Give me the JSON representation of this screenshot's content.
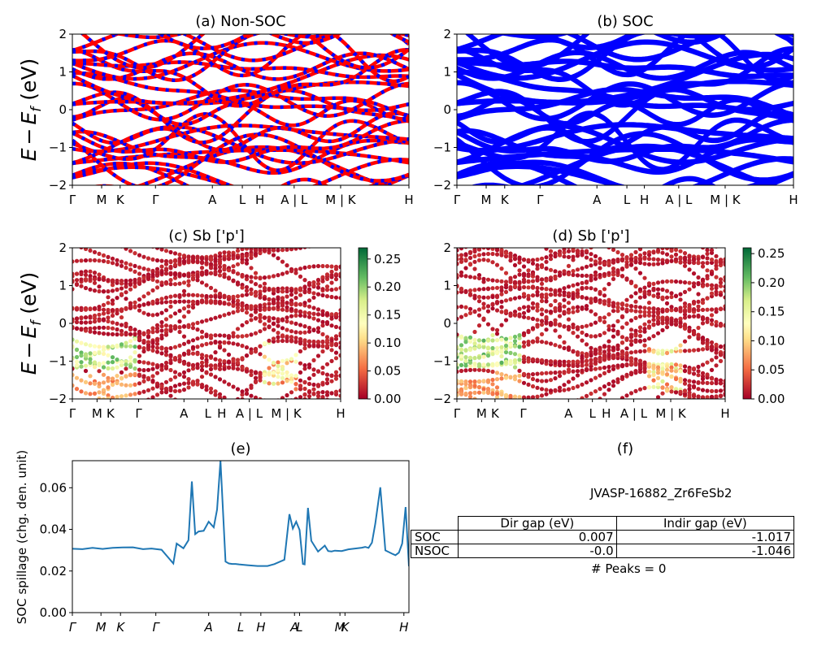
{
  "chart_data": [
    {
      "id": "a",
      "type": "line",
      "title": "(a) Non-SOC",
      "ylabel": "$E - E_f$ (eV)",
      "ylabel_text": {
        "E": "E",
        "minus": "−",
        "E2": "E",
        "sub": "f",
        "unit": " (eV)"
      },
      "ylim": [
        -2,
        2
      ],
      "yticks": [
        "−2",
        "−1",
        "0",
        "1",
        "2"
      ],
      "xticks": [
        "Γ",
        "M",
        "K",
        "Γ",
        "A",
        "L",
        "H",
        "A | L",
        "M | K",
        "H"
      ],
      "line_colors": [
        "#ff0000",
        "#0000ff"
      ]
    },
    {
      "id": "b",
      "type": "line",
      "title": "(b) SOC",
      "ylim": [
        -2,
        2
      ],
      "yticks": [
        "−2",
        "−1",
        "0",
        "1",
        "2"
      ],
      "xticks": [
        "Γ",
        "M",
        "K",
        "Γ",
        "A",
        "L",
        "H",
        "A | L",
        "M | K",
        "H"
      ],
      "line_colors": [
        "#0000ff"
      ]
    },
    {
      "id": "c",
      "type": "scatter",
      "title": "(c)  Sb ['p']",
      "ylabel": "$E - E_f$ (eV)",
      "ylim": [
        -2,
        2
      ],
      "yticks": [
        "−2",
        "−1",
        "0",
        "1",
        "2"
      ],
      "xticks": [
        "Γ",
        "M",
        "K",
        "Γ",
        "A",
        "L",
        "H",
        "A | L",
        "M | K",
        "H"
      ],
      "colorbar": {
        "min": 0.0,
        "max": 0.27,
        "ticks": [
          "0.00",
          "0.05",
          "0.10",
          "0.15",
          "0.20",
          "0.25"
        ],
        "tick_values": [
          0,
          0.05,
          0.1,
          0.15,
          0.2,
          0.25
        ],
        "colormap": "RdYlGn"
      }
    },
    {
      "id": "d",
      "type": "scatter",
      "title": "(d) Sb ['p']",
      "ylim": [
        -2,
        2
      ],
      "yticks": [
        "−2",
        "−1",
        "0",
        "1",
        "2"
      ],
      "xticks": [
        "Γ",
        "M",
        "K",
        "Γ",
        "A",
        "L",
        "H",
        "A | L",
        "M | K",
        "H"
      ],
      "colorbar": {
        "min": 0.0,
        "max": 0.26,
        "ticks": [
          "0.00",
          "0.05",
          "0.10",
          "0.15",
          "0.20",
          "0.25"
        ],
        "tick_values": [
          0,
          0.05,
          0.1,
          0.15,
          0.2,
          0.25
        ],
        "colormap": "RdYlGn"
      }
    },
    {
      "id": "e",
      "type": "line",
      "title": "(e)",
      "ylabel": "SOC spillage (chg. den. unit)",
      "ylim": [
        0.0,
        0.073
      ],
      "yticks": [
        "0.00",
        "0.02",
        "0.04",
        "0.06"
      ],
      "ytick_values": [
        0.0,
        0.02,
        0.04,
        0.06
      ],
      "xticks": [
        "Γ",
        "M",
        "K",
        "Γ",
        "A",
        "L",
        "H",
        "A",
        "L",
        "M",
        "K",
        "H"
      ],
      "xtick_positions": [
        0,
        0.085,
        0.143,
        0.248,
        0.405,
        0.5,
        0.56,
        0.66,
        0.675,
        0.795,
        0.81,
        0.985
      ],
      "series": [
        {
          "color": "#1f77b4",
          "x": [
            0,
            0.03,
            0.06,
            0.09,
            0.12,
            0.15,
            0.18,
            0.21,
            0.235,
            0.265,
            0.3,
            0.31,
            0.33,
            0.345,
            0.355,
            0.365,
            0.375,
            0.39,
            0.405,
            0.42,
            0.43,
            0.44,
            0.455,
            0.465,
            0.475,
            0.485,
            0.495,
            0.52,
            0.55,
            0.58,
            0.6,
            0.63,
            0.645,
            0.655,
            0.665,
            0.675,
            0.685,
            0.69,
            0.7,
            0.71,
            0.73,
            0.75,
            0.76,
            0.77,
            0.78,
            0.8,
            0.82,
            0.84,
            0.86,
            0.87,
            0.88,
            0.89,
            0.9,
            0.915,
            0.93,
            0.95,
            0.96,
            0.97,
            0.98,
            0.99,
            1.0
          ],
          "values": [
            0.0307,
            0.0305,
            0.0311,
            0.0306,
            0.0311,
            0.0313,
            0.0314,
            0.0305,
            0.0308,
            0.0302,
            0.0236,
            0.0332,
            0.0309,
            0.0348,
            0.063,
            0.0377,
            0.039,
            0.0393,
            0.0437,
            0.041,
            0.0495,
            0.073,
            0.0245,
            0.0236,
            0.0234,
            0.0234,
            0.0232,
            0.0228,
            0.0224,
            0.0224,
            0.0233,
            0.0254,
            0.0473,
            0.0404,
            0.0437,
            0.0397,
            0.0234,
            0.0232,
            0.0503,
            0.0345,
            0.0293,
            0.0322,
            0.0296,
            0.0294,
            0.0298,
            0.0296,
            0.0304,
            0.0308,
            0.0312,
            0.0316,
            0.0311,
            0.0336,
            0.0427,
            0.0602,
            0.0299,
            0.0283,
            0.0276,
            0.0288,
            0.0332,
            0.0507,
            0.0223
          ]
        }
      ]
    }
  ],
  "panel_f": {
    "title": "(f)",
    "name": "JVASP-16882_Zr6FeSb2",
    "headers": [
      "Dir gap (eV)",
      "Indir gap (eV)"
    ],
    "rows": [
      {
        "label": "SOC",
        "dir": "0.007",
        "indir": "-1.017"
      },
      {
        "label": "NSOC",
        "dir": "-0.0",
        "indir": "-1.046"
      }
    ],
    "peaks": "# Peaks = 0"
  }
}
